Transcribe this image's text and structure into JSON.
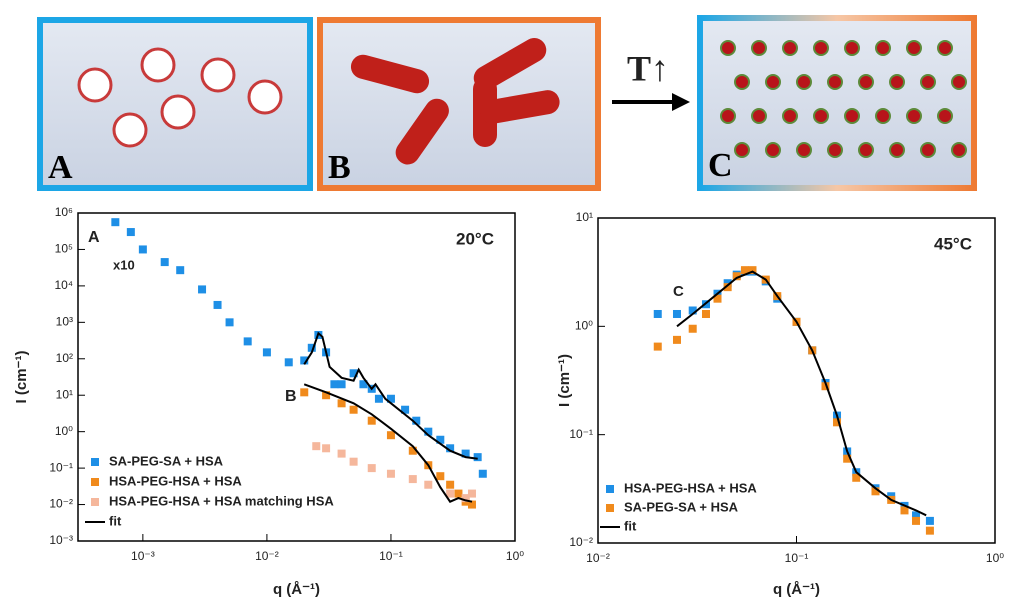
{
  "schematic": {
    "panels": [
      "A",
      "B",
      "C"
    ],
    "arrow_label": "T↑"
  },
  "chart_data": [
    {
      "type": "scatter",
      "xscale": "log",
      "yscale": "log",
      "x_label": "q (Å⁻¹)",
      "y_label": "I (cm⁻¹)",
      "xlim": [
        0.0003,
        1
      ],
      "ylim": [
        0.001,
        1000000
      ],
      "xticks": [
        {
          "value": 0.001,
          "label": "10⁻³"
        },
        {
          "value": 0.01,
          "label": "10⁻²"
        },
        {
          "value": 0.1,
          "label": "10⁻¹"
        },
        {
          "value": 1,
          "label": "10⁰"
        }
      ],
      "yticks": [
        {
          "value": 0.001,
          "label": "10⁻³"
        },
        {
          "value": 0.01,
          "label": "10⁻²"
        },
        {
          "value": 0.1,
          "label": "10⁻¹"
        },
        {
          "value": 1,
          "label": "10⁰"
        },
        {
          "value": 10,
          "label": "10¹"
        },
        {
          "value": 100,
          "label": "10²"
        },
        {
          "value": 1000,
          "label": "10³"
        },
        {
          "value": 10000,
          "label": "10⁴"
        },
        {
          "value": 100000,
          "label": "10⁵"
        },
        {
          "value": 1000000,
          "label": "10⁶"
        }
      ],
      "legend": "lower left",
      "annotations": [
        "A",
        "x10",
        "20°C",
        "B"
      ],
      "series": [
        {
          "name": "SA-PEG-SA + HSA",
          "color": "#1e8fe6",
          "style": "markers",
          "x": [
            0.0006,
            0.0008,
            0.001,
            0.0015,
            0.002,
            0.003,
            0.004,
            0.005,
            0.007,
            0.01,
            0.015,
            0.02,
            0.023,
            0.026,
            0.03,
            0.035,
            0.04,
            0.05,
            0.06,
            0.07,
            0.08,
            0.1,
            0.13,
            0.16,
            0.2,
            0.25,
            0.3,
            0.4,
            0.5,
            0.55
          ],
          "values": [
            560000,
            300000,
            100000,
            45000,
            27000,
            8000,
            3000,
            1000,
            300,
            150,
            80,
            90,
            200,
            450,
            150,
            20,
            20,
            40,
            20,
            15,
            8,
            8,
            4,
            2,
            1,
            0.6,
            0.35,
            0.25,
            0.2,
            0.07
          ]
        },
        {
          "name": "HSA-PEG-HSA + HSA",
          "color": "#f08a1c",
          "style": "markers",
          "x": [
            0.02,
            0.03,
            0.04,
            0.05,
            0.07,
            0.1,
            0.15,
            0.2,
            0.25,
            0.3,
            0.35,
            0.4,
            0.45
          ],
          "values": [
            12,
            10,
            6,
            4,
            2,
            0.8,
            0.3,
            0.12,
            0.06,
            0.035,
            0.02,
            0.012,
            0.01
          ]
        },
        {
          "name": "HSA-PEG-HSA + HSA matching HSA",
          "color": "#f5b79c",
          "style": "markers",
          "x": [
            0.025,
            0.03,
            0.04,
            0.05,
            0.07,
            0.1,
            0.15,
            0.2,
            0.3,
            0.4,
            0.45
          ],
          "values": [
            0.4,
            0.35,
            0.25,
            0.15,
            0.1,
            0.07,
            0.05,
            0.035,
            0.02,
            0.015,
            0.02
          ]
        },
        {
          "name": "fit",
          "color": "#000000",
          "style": "line",
          "x": [
            0.02,
            0.023,
            0.026,
            0.028,
            0.032,
            0.04,
            0.05,
            0.055,
            0.06,
            0.07,
            0.075,
            0.09,
            0.1,
            0.15,
            0.2,
            0.3,
            0.4,
            0.5,
            null,
            0.02,
            0.03,
            0.05,
            0.07,
            0.1,
            0.15,
            0.2,
            0.25,
            0.3,
            0.35,
            0.4,
            0.45
          ],
          "values": [
            70,
            150,
            500,
            400,
            60,
            30,
            25,
            50,
            30,
            15,
            20,
            8,
            6,
            2,
            0.8,
            0.3,
            0.2,
            0.18,
            null,
            20,
            12,
            6,
            3,
            1.2,
            0.4,
            0.12,
            0.03,
            0.012,
            0.015,
            0.013,
            0.012
          ]
        }
      ]
    },
    {
      "type": "scatter",
      "xscale": "log",
      "yscale": "log",
      "x_label": "q (Å⁻¹)",
      "y_label": "I (cm⁻¹)",
      "xlim": [
        0.01,
        1
      ],
      "ylim": [
        0.01,
        10
      ],
      "xticks": [
        {
          "value": 0.01,
          "label": "10⁻²"
        },
        {
          "value": 0.1,
          "label": "10⁻¹"
        },
        {
          "value": 1,
          "label": "10⁰"
        }
      ],
      "yticks": [
        {
          "value": 0.01,
          "label": "10⁻²"
        },
        {
          "value": 0.1,
          "label": "10⁻¹"
        },
        {
          "value": 1,
          "label": "10⁰"
        },
        {
          "value": 10,
          "label": "10¹"
        }
      ],
      "legend": "lower left",
      "annotations": [
        "45°C",
        "C"
      ],
      "series": [
        {
          "name": "HSA-PEG-HSA + HSA",
          "color": "#1e8fe6",
          "style": "markers",
          "x": [
            0.02,
            0.025,
            0.03,
            0.035,
            0.04,
            0.045,
            0.05,
            0.055,
            0.06,
            0.07,
            0.08,
            0.1,
            0.12,
            0.14,
            0.16,
            0.18,
            0.2,
            0.25,
            0.3,
            0.35,
            0.4,
            0.47
          ],
          "values": [
            1.3,
            1.3,
            1.4,
            1.6,
            2,
            2.5,
            3,
            3.2,
            3.2,
            2.6,
            1.8,
            1.1,
            0.6,
            0.3,
            0.15,
            0.07,
            0.045,
            0.032,
            0.027,
            0.022,
            0.018,
            0.016
          ]
        },
        {
          "name": "SA-PEG-SA + HSA",
          "color": "#f08a1c",
          "style": "markers",
          "x": [
            0.02,
            0.025,
            0.03,
            0.035,
            0.04,
            0.045,
            0.05,
            0.055,
            0.06,
            0.07,
            0.08,
            0.1,
            0.12,
            0.14,
            0.16,
            0.18,
            0.2,
            0.25,
            0.3,
            0.35,
            0.4,
            0.47
          ],
          "values": [
            0.65,
            0.75,
            0.95,
            1.3,
            1.8,
            2.3,
            2.9,
            3.3,
            3.3,
            2.7,
            1.9,
            1.1,
            0.6,
            0.28,
            0.13,
            0.06,
            0.04,
            0.03,
            0.025,
            0.02,
            0.016,
            0.013
          ]
        },
        {
          "name": "fit",
          "color": "#000000",
          "style": "line",
          "x": [
            0.025,
            0.03,
            0.04,
            0.05,
            0.06,
            0.07,
            0.08,
            0.1,
            0.12,
            0.14,
            0.16,
            0.18,
            0.2,
            0.25,
            0.3,
            0.4,
            0.45
          ],
          "values": [
            1.0,
            1.3,
            2,
            2.8,
            3.2,
            2.7,
            1.9,
            1.1,
            0.6,
            0.3,
            0.15,
            0.07,
            0.045,
            0.032,
            0.025,
            0.02,
            0.018
          ]
        }
      ]
    }
  ]
}
